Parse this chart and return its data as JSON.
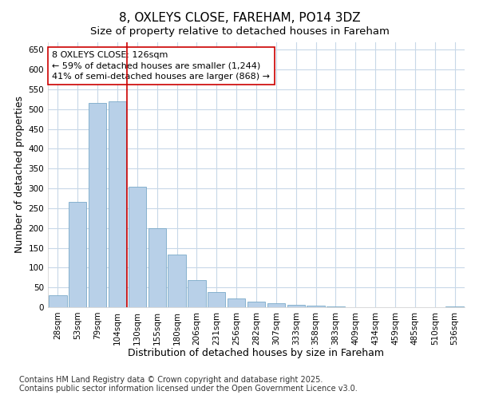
{
  "title": "8, OXLEYS CLOSE, FAREHAM, PO14 3DZ",
  "subtitle": "Size of property relative to detached houses in Fareham",
  "xlabel": "Distribution of detached houses by size in Fareham",
  "ylabel": "Number of detached properties",
  "categories": [
    "28sqm",
    "53sqm",
    "79sqm",
    "104sqm",
    "130sqm",
    "155sqm",
    "180sqm",
    "206sqm",
    "231sqm",
    "256sqm",
    "282sqm",
    "307sqm",
    "333sqm",
    "358sqm",
    "383sqm",
    "409sqm",
    "434sqm",
    "459sqm",
    "485sqm",
    "510sqm",
    "536sqm"
  ],
  "values": [
    30,
    265,
    515,
    520,
    305,
    200,
    133,
    68,
    38,
    22,
    15,
    10,
    6,
    4,
    2,
    0,
    0,
    0,
    0,
    0,
    2
  ],
  "bar_color": "#b8d0e8",
  "bar_edge_color": "#7aaac8",
  "vline_x_idx": 4,
  "vline_color": "#cc0000",
  "annotation_line1": "8 OXLEYS CLOSE: 126sqm",
  "annotation_line2": "← 59% of detached houses are smaller (1,244)",
  "annotation_line3": "41% of semi-detached houses are larger (868) →",
  "annotation_box_color": "#ffffff",
  "annotation_box_edge": "#cc0000",
  "ylim": [
    0,
    670
  ],
  "yticks": [
    0,
    50,
    100,
    150,
    200,
    250,
    300,
    350,
    400,
    450,
    500,
    550,
    600,
    650
  ],
  "footnote1": "Contains HM Land Registry data © Crown copyright and database right 2025.",
  "footnote2": "Contains public sector information licensed under the Open Government Licence v3.0.",
  "bg_color": "#ffffff",
  "plot_bg_color": "#ffffff",
  "grid_color": "#c8d8e8",
  "title_fontsize": 11,
  "subtitle_fontsize": 9.5,
  "axis_label_fontsize": 9,
  "tick_fontsize": 7.5,
  "annotation_fontsize": 8,
  "footnote_fontsize": 7
}
